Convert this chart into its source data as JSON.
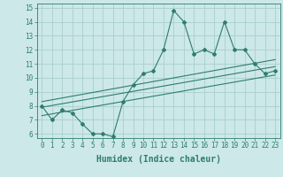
{
  "xlabel": "Humidex (Indice chaleur)",
  "xlim": [
    -0.5,
    23.5
  ],
  "ylim": [
    5.7,
    15.3
  ],
  "xticks": [
    0,
    1,
    2,
    3,
    4,
    5,
    6,
    7,
    8,
    9,
    10,
    11,
    12,
    13,
    14,
    15,
    16,
    17,
    18,
    19,
    20,
    21,
    22,
    23
  ],
  "yticks": [
    6,
    7,
    8,
    9,
    10,
    11,
    12,
    13,
    14,
    15
  ],
  "main_x": [
    0,
    1,
    2,
    3,
    4,
    5,
    6,
    7,
    8,
    9,
    10,
    11,
    12,
    13,
    14,
    15,
    16,
    17,
    18,
    19,
    20,
    21,
    22,
    23
  ],
  "main_y": [
    8.0,
    7.0,
    7.7,
    7.5,
    6.7,
    6.0,
    6.0,
    5.8,
    8.3,
    9.5,
    10.3,
    10.5,
    12.0,
    14.8,
    14.0,
    11.7,
    12.0,
    11.7,
    14.0,
    12.0,
    12.0,
    11.0,
    10.3,
    10.5
  ],
  "trend1_x": [
    0,
    23
  ],
  "trend1_y": [
    7.9,
    10.8
  ],
  "trend2_x": [
    0,
    23
  ],
  "trend2_y": [
    8.3,
    11.3
  ],
  "trend3_x": [
    0,
    23
  ],
  "trend3_y": [
    7.3,
    10.2
  ],
  "line_color": "#2e7d6e",
  "bg_color": "#cce8e8",
  "grid_color": "#aacece",
  "tick_fontsize": 5.5,
  "label_fontsize": 7
}
